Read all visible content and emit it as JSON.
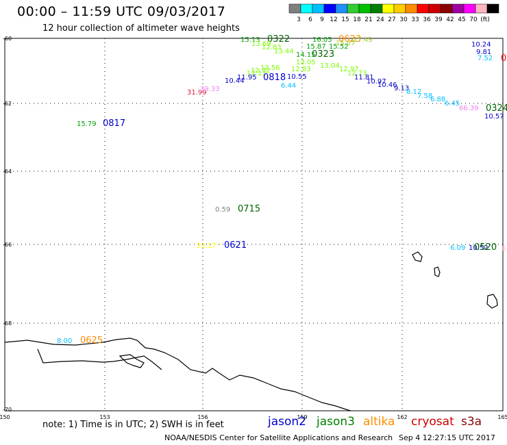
{
  "header": {
    "title": "00:00 – 11:59 UTC 09/03/2017",
    "subtitle": "12 hour collection of altimeter wave heights"
  },
  "scale": {
    "colors": [
      "#7f7f7f",
      "#00ffff",
      "#00bfff",
      "#0000ff",
      "#1e90ff",
      "#32cd32",
      "#00c000",
      "#008000",
      "#ffff00",
      "#ffcc00",
      "#ff8c00",
      "#ff0000",
      "#cc0000",
      "#8b0000",
      "#a000a0",
      "#ff00ff",
      "#ffb6c1",
      "#000000"
    ],
    "labels": [
      "3",
      "6",
      "9",
      "12",
      "15",
      "18",
      "21",
      "24",
      "27",
      "30",
      "33",
      "36",
      "39",
      "42",
      "45",
      "70",
      "(ft)"
    ]
  },
  "axes": {
    "lat_labels": [
      "-60",
      "-62",
      "-64",
      "-66",
      "-68",
      "-70"
    ],
    "lon_labels": [
      "150",
      "153",
      "156",
      "159",
      "162",
      "165"
    ]
  },
  "observations": [
    {
      "text": "15.13",
      "color": "#00a000"
    },
    {
      "text": "0322",
      "color": "#006400"
    },
    {
      "text": "13.69",
      "color": "#7cfc00"
    },
    {
      "text": "12.83",
      "color": "#7cfc00"
    },
    {
      "text": "13.44",
      "color": "#7cfc00"
    },
    {
      "text": "16.05",
      "color": "#00a000"
    },
    {
      "text": "0623",
      "color": "#ff8c00"
    },
    {
      "text": "17.49",
      "color": "#9acd32"
    },
    {
      "text": "15.87",
      "color": "#00a000"
    },
    {
      "text": "15.52",
      "color": "#00a000"
    },
    {
      "text": "15.87",
      "color": "#9acd32"
    },
    {
      "text": "0323",
      "color": "#006400"
    },
    {
      "text": "14.15",
      "color": "#00a000"
    },
    {
      "text": "13.05",
      "color": "#7cfc00"
    },
    {
      "text": "12.56",
      "color": "#7cfc00"
    },
    {
      "text": "12.83",
      "color": "#7cfc00"
    },
    {
      "text": "13.04",
      "color": "#7cfc00"
    },
    {
      "text": "12.97",
      "color": "#7cfc00"
    },
    {
      "text": "12.73",
      "color": "#7cfc00"
    },
    {
      "text": "12.72",
      "color": "#7cfc00"
    },
    {
      "text": "12.13",
      "color": "#7cfc00"
    },
    {
      "text": "11.95",
      "color": "#0000cd"
    },
    {
      "text": "10.44",
      "color": "#0000cd"
    },
    {
      "text": "0818",
      "color": "#0000cd"
    },
    {
      "text": "10.55",
      "color": "#0000cd"
    },
    {
      "text": "6.44",
      "color": "#00bfff"
    },
    {
      "text": "31.99",
      "color": "#dc143c"
    },
    {
      "text": "39.33",
      "color": "#ee82ee"
    },
    {
      "text": "11.81",
      "color": "#0000cd"
    },
    {
      "text": "10.97",
      "color": "#0000cd"
    },
    {
      "text": "10.46",
      "color": "#0000cd"
    },
    {
      "text": "9.13",
      "color": "#0000cd"
    },
    {
      "text": "8.12",
      "color": "#00bfff"
    },
    {
      "text": "7.58",
      "color": "#00bfff"
    },
    {
      "text": "6.88",
      "color": "#00bfff"
    },
    {
      "text": "6.45",
      "color": "#00bfff"
    },
    {
      "text": "66.39",
      "color": "#ee82ee"
    },
    {
      "text": "0324",
      "color": "#006400"
    },
    {
      "text": "10.57",
      "color": "#0000cd"
    },
    {
      "text": "10.24",
      "color": "#0000cd"
    },
    {
      "text": "9.81",
      "color": "#0000cd"
    },
    {
      "text": "7.52",
      "color": "#00bfff"
    },
    {
      "text": "0",
      "color": "#ff0000"
    },
    {
      "text": "15.79",
      "color": "#00a000"
    },
    {
      "text": "0817",
      "color": "#0000cd"
    },
    {
      "text": "0.59",
      "color": "#808080"
    },
    {
      "text": "0715",
      "color": "#006400"
    },
    {
      "text": "23.17",
      "color": "#ffff00"
    },
    {
      "text": "0621",
      "color": "#0000cd"
    },
    {
      "text": "6.09",
      "color": "#00bfff"
    },
    {
      "text": "10.52",
      "color": "#0000cd"
    },
    {
      "text": "0520",
      "color": "#006400"
    },
    {
      "text": "6.8",
      "color": "#ffb6c1"
    },
    {
      "text": "8.00",
      "color": "#00bfff"
    },
    {
      "text": "0625",
      "color": "#ff8c00"
    }
  ],
  "footer": {
    "note": "note: 1) Time is in UTC; 2) SWH is in feet",
    "satellites": [
      {
        "name": "jason2",
        "color": "#0000cd"
      },
      {
        "name": "jason3",
        "color": "#008000"
      },
      {
        "name": "altika",
        "color": "#ff8c00"
      },
      {
        "name": "cryosat",
        "color": "#cc0000"
      },
      {
        "name": "s3a",
        "color": "#8b0000"
      }
    ],
    "credit": "NOAA/NESDIS Center for Satellite Applications and Research",
    "timestamp": "Sep  4 12:27:15 UTC 2017"
  }
}
